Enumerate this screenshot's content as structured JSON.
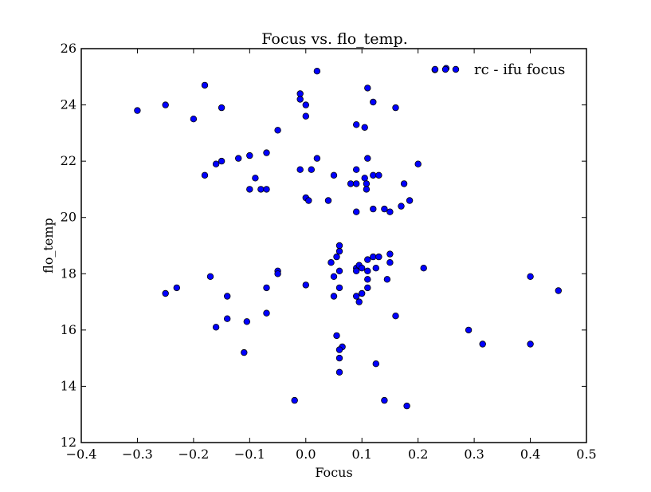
{
  "chart_data": {
    "type": "scatter",
    "title": "Focus vs. flo_temp.",
    "xlabel": "Focus",
    "ylabel": "flo_temp",
    "xlim": [
      -0.4,
      0.5
    ],
    "ylim": [
      12,
      26
    ],
    "xticks": [
      -0.4,
      -0.3,
      -0.2,
      -0.1,
      0.0,
      0.1,
      0.2,
      0.3,
      0.4,
      0.5
    ],
    "xtick_labels": [
      "−0.4",
      "−0.3",
      "−0.2",
      "−0.1",
      "0.0",
      "0.1",
      "0.2",
      "0.3",
      "0.4",
      "0.5"
    ],
    "yticks": [
      12,
      14,
      16,
      18,
      20,
      22,
      24,
      26
    ],
    "ytick_labels": [
      "12",
      "14",
      "16",
      "18",
      "20",
      "22",
      "24",
      "26"
    ],
    "grid": false,
    "legend_position": "top-right",
    "series": [
      {
        "name": "rc - ifu focus",
        "marker_color": "#0000ff",
        "edge_color": "#000000",
        "points": [
          [
            -0.3,
            23.8
          ],
          [
            -0.25,
            24.0
          ],
          [
            -0.2,
            23.5
          ],
          [
            -0.18,
            24.7
          ],
          [
            -0.15,
            23.9
          ],
          [
            -0.18,
            21.5
          ],
          [
            -0.16,
            21.9
          ],
          [
            -0.15,
            22.0
          ],
          [
            -0.12,
            22.1
          ],
          [
            -0.1,
            22.2
          ],
          [
            -0.07,
            22.3
          ],
          [
            -0.09,
            21.4
          ],
          [
            -0.1,
            21.0
          ],
          [
            -0.08,
            21.0
          ],
          [
            -0.07,
            21.0
          ],
          [
            -0.05,
            23.1
          ],
          [
            -0.01,
            24.4
          ],
          [
            -0.01,
            24.2
          ],
          [
            0.0,
            24.0
          ],
          [
            0.0,
            23.6
          ],
          [
            0.02,
            25.2
          ],
          [
            -0.01,
            21.7
          ],
          [
            0.01,
            21.7
          ],
          [
            0.02,
            22.1
          ],
          [
            0.0,
            20.7
          ],
          [
            0.005,
            20.6
          ],
          [
            0.04,
            20.6
          ],
          [
            0.05,
            21.5
          ],
          [
            0.08,
            21.2
          ],
          [
            0.09,
            21.2
          ],
          [
            0.09,
            21.7
          ],
          [
            0.09,
            23.3
          ],
          [
            0.09,
            20.2
          ],
          [
            0.105,
            23.2
          ],
          [
            0.105,
            21.4
          ],
          [
            0.108,
            21.2
          ],
          [
            0.108,
            21.0
          ],
          [
            0.11,
            22.1
          ],
          [
            0.11,
            24.6
          ],
          [
            0.12,
            24.1
          ],
          [
            0.12,
            21.5
          ],
          [
            0.13,
            21.5
          ],
          [
            0.12,
            20.3
          ],
          [
            0.14,
            20.3
          ],
          [
            0.15,
            20.2
          ],
          [
            0.16,
            23.9
          ],
          [
            0.17,
            20.4
          ],
          [
            0.175,
            21.2
          ],
          [
            0.185,
            20.6
          ],
          [
            0.2,
            21.9
          ],
          [
            0.23,
            25.25
          ],
          [
            0.25,
            25.3
          ],
          [
            -0.25,
            17.3
          ],
          [
            -0.23,
            17.5
          ],
          [
            -0.17,
            17.9
          ],
          [
            -0.14,
            17.2
          ],
          [
            -0.14,
            16.4
          ],
          [
            -0.16,
            16.1
          ],
          [
            -0.105,
            16.3
          ],
          [
            -0.11,
            15.2
          ],
          [
            -0.07,
            17.5
          ],
          [
            -0.07,
            16.6
          ],
          [
            -0.05,
            18.1
          ],
          [
            -0.05,
            18.0
          ],
          [
            0.0,
            17.6
          ],
          [
            0.045,
            18.4
          ],
          [
            0.05,
            17.9
          ],
          [
            0.05,
            17.2
          ],
          [
            0.055,
            18.6
          ],
          [
            0.06,
            19.0
          ],
          [
            0.06,
            18.8
          ],
          [
            0.06,
            18.1
          ],
          [
            0.06,
            17.5
          ],
          [
            0.055,
            15.8
          ],
          [
            0.065,
            15.4
          ],
          [
            0.06,
            15.3
          ],
          [
            0.06,
            15.0
          ],
          [
            0.06,
            14.5
          ],
          [
            0.09,
            18.2
          ],
          [
            0.09,
            18.1
          ],
          [
            0.095,
            18.3
          ],
          [
            0.09,
            17.2
          ],
          [
            0.095,
            17.0
          ],
          [
            0.1,
            17.3
          ],
          [
            0.1,
            18.2
          ],
          [
            0.11,
            18.5
          ],
          [
            0.11,
            18.1
          ],
          [
            0.11,
            17.8
          ],
          [
            0.11,
            17.5
          ],
          [
            0.12,
            18.6
          ],
          [
            0.13,
            18.6
          ],
          [
            0.125,
            18.2
          ],
          [
            0.15,
            18.7
          ],
          [
            0.15,
            18.4
          ],
          [
            0.145,
            17.8
          ],
          [
            0.16,
            16.5
          ],
          [
            0.125,
            14.8
          ],
          [
            0.14,
            13.5
          ],
          [
            0.18,
            13.3
          ],
          [
            -0.02,
            13.5
          ],
          [
            0.21,
            18.2
          ],
          [
            0.29,
            16.0
          ],
          [
            0.315,
            15.5
          ],
          [
            0.4,
            17.9
          ],
          [
            0.4,
            15.5
          ],
          [
            0.45,
            17.4
          ]
        ]
      }
    ]
  }
}
